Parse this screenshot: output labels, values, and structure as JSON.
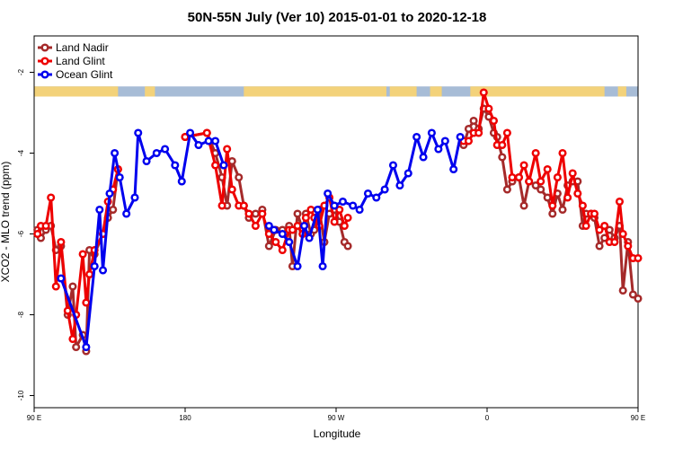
{
  "chart_data": {
    "type": "line",
    "title": "50N-55N July (Ver 10)   2015-01-01 to 2020-12-18",
    "xlabel": "Longitude",
    "ylabel": "XCO2 - MLO trend (ppm)",
    "xlim": [
      90,
      450
    ],
    "ylim": [
      -10.3,
      -1.1
    ],
    "x_ticks": [
      {
        "value": 90,
        "label": "90 E"
      },
      {
        "value": 180,
        "label": "180"
      },
      {
        "value": 270,
        "label": "90 W"
      },
      {
        "value": 360,
        "label": "0"
      },
      {
        "value": 450,
        "label": "90 E"
      },
      {
        "value": 540,
        "label": "180"
      }
    ],
    "y_ticks": [
      -2,
      -4,
      -6,
      -8,
      -10
    ],
    "grid": false,
    "legend_position": "top-left",
    "land_mask_band": {
      "y_range": [
        -2.35,
        -2.6
      ],
      "ocean_color": "#a7bcd6",
      "land_color": "#f3d27a"
    },
    "series": [
      {
        "name": "Land Nadir",
        "color": "#a52a2a",
        "points": [
          [
            92,
            -5.9
          ],
          [
            94,
            -6.1
          ],
          [
            97,
            -5.9
          ],
          [
            100,
            -5.8
          ],
          [
            103,
            -6.4
          ],
          [
            106,
            -6.3
          ],
          [
            110,
            -8.0
          ],
          [
            113,
            -7.3
          ],
          [
            115,
            -8.8
          ],
          [
            119,
            -8.5
          ],
          [
            121,
            -8.9
          ],
          [
            123,
            -6.4
          ],
          [
            126,
            -6.5
          ],
          [
            131,
            -6.0
          ],
          [
            134,
            -5.6
          ],
          [
            137,
            -5.4
          ],
          [
            140,
            -4.4
          ],
          [
            180,
            -3.6
          ],
          [
            193,
            -3.5
          ],
          [
            198,
            -4.0
          ],
          [
            202,
            -4.6
          ],
          [
            205,
            -5.3
          ],
          [
            208,
            -4.2
          ],
          [
            212,
            -4.6
          ],
          [
            215,
            -5.3
          ],
          [
            218,
            -5.6
          ],
          [
            222,
            -5.5
          ],
          [
            226,
            -5.4
          ],
          [
            230,
            -6.3
          ],
          [
            234,
            -5.9
          ],
          [
            238,
            -5.9
          ],
          [
            242,
            -5.8
          ],
          [
            244,
            -6.8
          ],
          [
            247,
            -5.5
          ],
          [
            250,
            -5.9
          ],
          [
            252,
            -5.5
          ],
          [
            255,
            -6.0
          ],
          [
            257,
            -5.9
          ],
          [
            260,
            -5.4
          ],
          [
            263,
            -6.2
          ],
          [
            266,
            -5.5
          ],
          [
            269,
            -5.4
          ],
          [
            272,
            -5.7
          ],
          [
            275,
            -6.2
          ],
          [
            277,
            -6.3
          ],
          [
            346,
            -3.8
          ],
          [
            349,
            -3.4
          ],
          [
            352,
            -3.2
          ],
          [
            355,
            -3.4
          ],
          [
            358,
            -2.9
          ],
          [
            361,
            -3.1
          ],
          [
            364,
            -3.5
          ],
          [
            366,
            -3.6
          ],
          [
            369,
            -4.1
          ],
          [
            372,
            -4.9
          ],
          [
            375,
            -4.7
          ],
          [
            379,
            -4.6
          ],
          [
            382,
            -5.3
          ],
          [
            385,
            -4.7
          ],
          [
            389,
            -4.8
          ],
          [
            392,
            -4.9
          ],
          [
            396,
            -5.1
          ],
          [
            399,
            -5.5
          ],
          [
            402,
            -5.0
          ],
          [
            405,
            -5.4
          ],
          [
            408,
            -4.8
          ],
          [
            411,
            -4.7
          ],
          [
            414,
            -4.7
          ],
          [
            417,
            -5.8
          ],
          [
            419,
            -5.5
          ],
          [
            422,
            -5.5
          ],
          [
            424,
            -5.6
          ],
          [
            427,
            -6.3
          ],
          [
            430,
            -6.1
          ],
          [
            433,
            -5.9
          ],
          [
            436,
            -6.1
          ],
          [
            439,
            -5.8
          ],
          [
            441,
            -7.4
          ],
          [
            444,
            -6.2
          ],
          [
            447,
            -7.5
          ],
          [
            450,
            -7.6
          ]
        ]
      },
      {
        "name": "Land Glint",
        "color": "#ee0000",
        "points": [
          [
            92,
            -6.0
          ],
          [
            94,
            -5.8
          ],
          [
            97,
            -5.8
          ],
          [
            100,
            -5.1
          ],
          [
            103,
            -7.3
          ],
          [
            106,
            -6.2
          ],
          [
            110,
            -7.9
          ],
          [
            113,
            -8.6
          ],
          [
            115,
            -8.0
          ],
          [
            119,
            -6.5
          ],
          [
            121,
            -7.7
          ],
          [
            123,
            -7.0
          ],
          [
            126,
            -6.4
          ],
          [
            131,
            -6.0
          ],
          [
            134,
            -5.2
          ],
          [
            137,
            -4.9
          ],
          [
            140,
            -4.4
          ],
          [
            180,
            -3.6
          ],
          [
            193,
            -3.5
          ],
          [
            198,
            -4.3
          ],
          [
            202,
            -5.3
          ],
          [
            205,
            -3.9
          ],
          [
            208,
            -4.9
          ],
          [
            212,
            -5.3
          ],
          [
            215,
            -5.3
          ],
          [
            218,
            -5.5
          ],
          [
            222,
            -5.8
          ],
          [
            226,
            -5.5
          ],
          [
            230,
            -6.0
          ],
          [
            234,
            -6.2
          ],
          [
            238,
            -6.4
          ],
          [
            242,
            -5.9
          ],
          [
            244,
            -5.9
          ],
          [
            247,
            -5.8
          ],
          [
            250,
            -6.0
          ],
          [
            252,
            -5.6
          ],
          [
            255,
            -5.4
          ],
          [
            257,
            -5.6
          ],
          [
            260,
            -5.8
          ],
          [
            263,
            -5.3
          ],
          [
            266,
            -5.1
          ],
          [
            269,
            -5.7
          ],
          [
            272,
            -5.4
          ],
          [
            275,
            -5.8
          ],
          [
            277,
            -5.6
          ],
          [
            346,
            -3.7
          ],
          [
            349,
            -3.7
          ],
          [
            352,
            -3.5
          ],
          [
            355,
            -3.5
          ],
          [
            358,
            -2.5
          ],
          [
            361,
            -2.9
          ],
          [
            364,
            -3.2
          ],
          [
            366,
            -3.8
          ],
          [
            369,
            -3.8
          ],
          [
            372,
            -3.5
          ],
          [
            375,
            -4.6
          ],
          [
            379,
            -4.6
          ],
          [
            382,
            -4.3
          ],
          [
            385,
            -4.7
          ],
          [
            389,
            -4.0
          ],
          [
            392,
            -4.7
          ],
          [
            396,
            -4.4
          ],
          [
            399,
            -5.3
          ],
          [
            402,
            -4.6
          ],
          [
            405,
            -4.0
          ],
          [
            408,
            -5.1
          ],
          [
            411,
            -4.5
          ],
          [
            414,
            -5.0
          ],
          [
            417,
            -5.3
          ],
          [
            419,
            -5.8
          ],
          [
            422,
            -5.5
          ],
          [
            424,
            -5.5
          ],
          [
            427,
            -5.9
          ],
          [
            430,
            -5.8
          ],
          [
            433,
            -6.2
          ],
          [
            436,
            -6.2
          ],
          [
            439,
            -5.2
          ],
          [
            441,
            -6.0
          ],
          [
            444,
            -6.3
          ],
          [
            447,
            -6.6
          ],
          [
            450,
            -6.6
          ]
        ]
      },
      {
        "name": "Ocean Glint",
        "color": "#0000ee",
        "points": [
          [
            106,
            -7.1
          ],
          [
            121,
            -8.8
          ],
          [
            126,
            -6.8
          ],
          [
            129,
            -5.4
          ],
          [
            131,
            -6.9
          ],
          [
            135,
            -5.0
          ],
          [
            138,
            -4.0
          ],
          [
            141,
            -4.6
          ],
          [
            145,
            -5.5
          ],
          [
            150,
            -5.1
          ],
          [
            152,
            -3.5
          ],
          [
            157,
            -4.2
          ],
          [
            163,
            -4.0
          ],
          [
            168,
            -3.9
          ],
          [
            174,
            -4.3
          ],
          [
            178,
            -4.7
          ],
          [
            183,
            -3.5
          ],
          [
            188,
            -3.8
          ],
          [
            194,
            -3.7
          ],
          [
            198,
            -3.7
          ],
          [
            203,
            -4.3
          ],
          [
            230,
            -5.8
          ],
          [
            233,
            -5.9
          ],
          [
            238,
            -6.0
          ],
          [
            242,
            -6.2
          ],
          [
            247,
            -6.8
          ],
          [
            251,
            -5.8
          ],
          [
            254,
            -6.1
          ],
          [
            259,
            -5.4
          ],
          [
            262,
            -6.8
          ],
          [
            265,
            -5.0
          ],
          [
            269,
            -5.3
          ],
          [
            274,
            -5.2
          ],
          [
            280,
            -5.3
          ],
          [
            284,
            -5.4
          ],
          [
            289,
            -5.0
          ],
          [
            294,
            -5.1
          ],
          [
            299,
            -4.9
          ],
          [
            304,
            -4.3
          ],
          [
            308,
            -4.8
          ],
          [
            313,
            -4.5
          ],
          [
            318,
            -3.6
          ],
          [
            322,
            -4.1
          ],
          [
            327,
            -3.5
          ],
          [
            331,
            -3.9
          ],
          [
            335,
            -3.7
          ],
          [
            340,
            -4.4
          ],
          [
            344,
            -3.6
          ]
        ]
      }
    ]
  }
}
